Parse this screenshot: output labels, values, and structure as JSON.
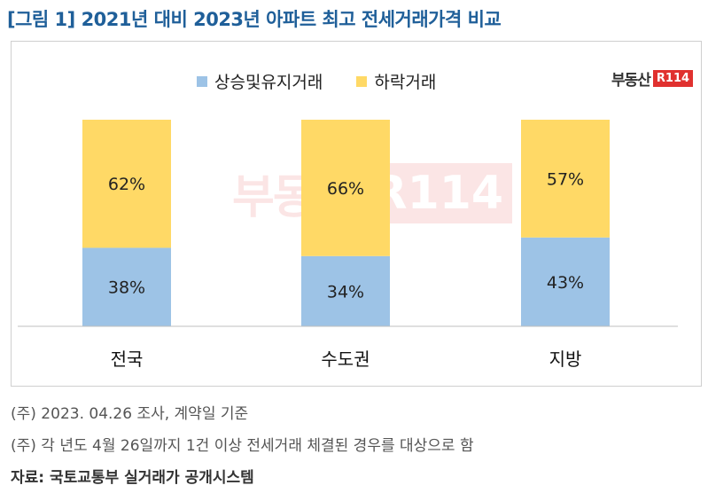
{
  "title": "[그림 1] 2021년 대비 2023년 아파트 최고 전세거래가격 비교",
  "logo": {
    "text": "부동산",
    "badge": "R114"
  },
  "watermark": {
    "text": "부동산",
    "badge": "R114"
  },
  "colors": {
    "up": "#9dc3e6",
    "down": "#ffd966",
    "axis": "#bfbfbf",
    "title": "#1f5f99"
  },
  "chart_data": {
    "type": "bar",
    "stacked": true,
    "categories": [
      "전국",
      "수도권",
      "지방"
    ],
    "series": [
      {
        "name": "상승및유지거래",
        "values": [
          38,
          34,
          43
        ],
        "labels": [
          "38%",
          "34%",
          "43%"
        ],
        "color": "#9dc3e6"
      },
      {
        "name": "하락거래",
        "values": [
          62,
          66,
          57
        ],
        "labels": [
          "62%",
          "66%",
          "57%"
        ],
        "color": "#ffd966"
      }
    ],
    "ylim": [
      0,
      100
    ],
    "legend_position": "top",
    "grid": false
  },
  "notes": [
    "(주) 2023. 04.26 조사, 계약일 기준",
    "(주) 각 년도 4월 26일까지 1건 이상 전세거래 체결된 경우를 대상으로 함"
  ],
  "source": "자료: 국토교통부 실거래가 공개시스템"
}
